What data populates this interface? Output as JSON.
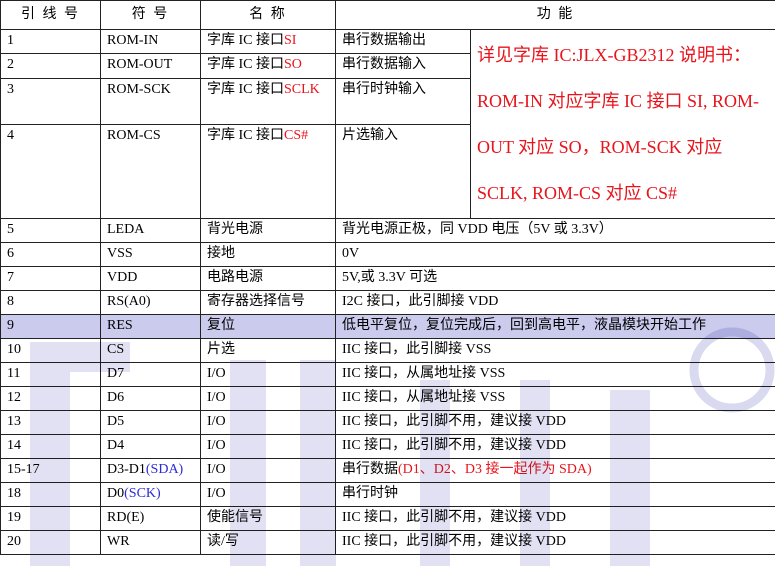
{
  "table": {
    "headers": [
      "引 线 号",
      "符 号",
      "名 称",
      "功 能"
    ],
    "upper_rows": [
      {
        "cells": [
          "1",
          "ROM-IN",
          [
            {
              "text": "字库 IC 接口"
            },
            {
              "text": "SI",
              "color": "#e8141b"
            }
          ],
          "串行数据输出"
        ]
      },
      {
        "cells": [
          "2",
          "ROM-OUT",
          [
            {
              "text": "字库 IC 接口"
            },
            {
              "text": "SO",
              "color": "#e8141b"
            }
          ],
          "串行数据输入"
        ]
      },
      {
        "cells": [
          "3",
          "ROM-SCK",
          [
            {
              "text": "字库 IC 接口"
            },
            {
              "text": "SCLK",
              "color": "#e8141b"
            }
          ],
          "串行时钟输入"
        ]
      },
      {
        "cells": [
          "4",
          "ROM-CS",
          [
            {
              "text": "字库 IC 接口"
            },
            {
              "text": "CS#",
              "color": "#e8141b"
            }
          ],
          "片选输入"
        ]
      }
    ],
    "note": {
      "text": "详见字库 IC:JLX-GB2312 说明书： ROM-IN 对应字库 IC 接口 SI, ROM-OUT 对应 SO，ROM-SCK 对应 SCLK, ROM-CS 对应 CS#",
      "color": "#e8141b"
    },
    "rows": [
      {
        "cells": [
          "5",
          "LEDA",
          "背光电源",
          "背光电源正极，同 VDD 电压（5V 或 3.3V）"
        ]
      },
      {
        "cells": [
          "6",
          "VSS",
          "接地",
          "0V"
        ]
      },
      {
        "cells": [
          "7",
          "VDD",
          "电路电源",
          "5V,或 3.3V 可选"
        ]
      },
      {
        "cells": [
          "8",
          "RS(A0)",
          "寄存器选择信号",
          "I2C 接口，此引脚接 VDD"
        ]
      },
      {
        "cells": [
          "9",
          "RES",
          "复位",
          "低电平复位，复位完成后，回到高电平，液晶模块开始工作"
        ],
        "background": "#cbcbee"
      },
      {
        "cells": [
          "10",
          "CS",
          "片选",
          "IIC 接口，此引脚接 VSS"
        ]
      },
      {
        "cells": [
          "11",
          "D7",
          "I/O",
          "IIC 接口，从属地址接 VSS"
        ]
      },
      {
        "cells": [
          "12",
          "D6",
          "I/O",
          "IIC 接口，从属地址接 VSS"
        ]
      },
      {
        "cells": [
          "13",
          "D5",
          "I/O",
          "IIC 接口，此引脚不用，建议接 VDD"
        ]
      },
      {
        "cells": [
          "14",
          "D4",
          "I/O",
          "IIC 接口，此引脚不用，建议接 VDD"
        ]
      },
      {
        "cells": [
          "15-17",
          [
            {
              "text": "D3-D1"
            },
            {
              "text": "(SDA)",
              "color": "#2b2bd6"
            }
          ],
          "I/O",
          [
            {
              "text": "串行数据"
            },
            {
              "text": "(D1、D2、D3 接一起作为 SDA)",
              "color": "#e8141b"
            }
          ]
        ]
      },
      {
        "cells": [
          "18",
          [
            {
              "text": "D0"
            },
            {
              "text": "(SCK)",
              "color": "#2b2bd6"
            }
          ],
          "I/O",
          "串行时钟"
        ]
      },
      {
        "cells": [
          "19",
          "RD(E)",
          "使能信号",
          "IIC 接口，此引脚不用，建议接 VDD"
        ]
      },
      {
        "cells": [
          "20",
          "WR",
          "读/写",
          "IIC 接口，此引脚不用，建议接 VDD"
        ]
      }
    ]
  }
}
